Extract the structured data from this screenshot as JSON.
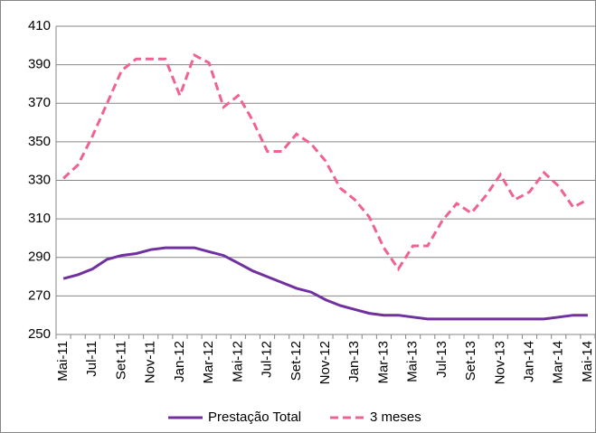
{
  "chart_data": {
    "type": "line",
    "categories": [
      "Mai-11",
      null,
      "Jul-11",
      null,
      "Set-11",
      null,
      "Nov-11",
      null,
      "Jan-12",
      null,
      "Mar-12",
      null,
      "Mai-12",
      null,
      "Jul-12",
      null,
      "Set-12",
      null,
      "Nov-12",
      null,
      "Jan-13",
      null,
      "Mar-13",
      null,
      "Mai-13",
      null,
      "Jul-13",
      null,
      "Set-13",
      null,
      "Nov-13",
      null,
      "Jan-14",
      null,
      "Mar-14",
      null,
      "Mai-14"
    ],
    "series": [
      {
        "name": "Prestação Total",
        "color": "#7030a0",
        "dash": false,
        "values": [
          279,
          281,
          284,
          289,
          291,
          292,
          294,
          295,
          295,
          295,
          293,
          291,
          287,
          283,
          280,
          277,
          274,
          272,
          268,
          265,
          263,
          261,
          260,
          260,
          259,
          258,
          258,
          258,
          258,
          258,
          258,
          258,
          258,
          258,
          259,
          260,
          260
        ]
      },
      {
        "name": "3 meses",
        "color": "#f06292",
        "dash": true,
        "values": [
          331,
          338,
          353,
          370,
          387,
          393,
          393,
          393,
          374,
          395,
          391,
          368,
          374,
          361,
          345,
          345,
          354,
          349,
          340,
          326,
          320,
          311,
          295,
          284,
          296,
          296,
          309,
          318,
          313,
          322,
          333,
          320,
          324,
          334,
          327,
          316,
          320
        ]
      }
    ],
    "ylim": [
      250,
      410
    ],
    "yticks": [
      250,
      270,
      290,
      310,
      330,
      350,
      370,
      390,
      410
    ],
    "grid": true,
    "legend": "bottom"
  }
}
